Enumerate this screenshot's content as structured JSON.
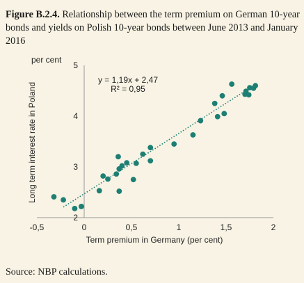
{
  "caption": {
    "label": "Figure B.2.4.",
    "text": "Relationship between the term premium on German 10-year bonds and yields on Polish 10-year bonds between June 2013 and January 2016"
  },
  "source": "Source: NBP calculations.",
  "chart_data": {
    "type": "scatter",
    "xlabel": "Term premium in Germany (per cent)",
    "ylabel": "Long term interest rate in Poland",
    "y_unit": "per cent",
    "xlim": [
      -0.5,
      2
    ],
    "ylim": [
      2,
      5
    ],
    "x_ticks": [
      "-0,5",
      "0",
      "0,5",
      "1",
      "1,5",
      "2"
    ],
    "y_ticks": [
      "2",
      "3",
      "4",
      "5"
    ],
    "grid": false,
    "legend": "none",
    "point_color": "#1d7f74",
    "trendline": {
      "equation": "y = 1,19x + 2,47",
      "r2": "R² = 0,95",
      "slope": 1.19,
      "intercept": 2.47,
      "style": "dotted",
      "color": "#1d7f74"
    },
    "points": [
      {
        "x": -0.32,
        "y": 2.41
      },
      {
        "x": -0.22,
        "y": 2.35
      },
      {
        "x": -0.1,
        "y": 2.18
      },
      {
        "x": -0.03,
        "y": 2.22
      },
      {
        "x": 0.16,
        "y": 2.53
      },
      {
        "x": 0.2,
        "y": 2.82
      },
      {
        "x": 0.25,
        "y": 2.76
      },
      {
        "x": 0.34,
        "y": 2.86
      },
      {
        "x": 0.37,
        "y": 2.96
      },
      {
        "x": 0.36,
        "y": 3.2
      },
      {
        "x": 0.4,
        "y": 3.02
      },
      {
        "x": 0.45,
        "y": 3.08
      },
      {
        "x": 0.37,
        "y": 2.52
      },
      {
        "x": 0.52,
        "y": 2.75
      },
      {
        "x": 0.55,
        "y": 3.07
      },
      {
        "x": 0.62,
        "y": 3.25
      },
      {
        "x": 0.7,
        "y": 3.38
      },
      {
        "x": 0.7,
        "y": 3.12
      },
      {
        "x": 0.95,
        "y": 3.45
      },
      {
        "x": 1.15,
        "y": 3.63
      },
      {
        "x": 1.23,
        "y": 3.91
      },
      {
        "x": 1.38,
        "y": 4.25
      },
      {
        "x": 1.41,
        "y": 3.99
      },
      {
        "x": 1.46,
        "y": 4.4
      },
      {
        "x": 1.48,
        "y": 4.05
      },
      {
        "x": 1.56,
        "y": 4.63
      },
      {
        "x": 1.7,
        "y": 4.43
      },
      {
        "x": 1.71,
        "y": 4.49
      },
      {
        "x": 1.74,
        "y": 4.42
      },
      {
        "x": 1.75,
        "y": 4.56
      },
      {
        "x": 1.79,
        "y": 4.55
      },
      {
        "x": 1.81,
        "y": 4.6
      }
    ]
  }
}
